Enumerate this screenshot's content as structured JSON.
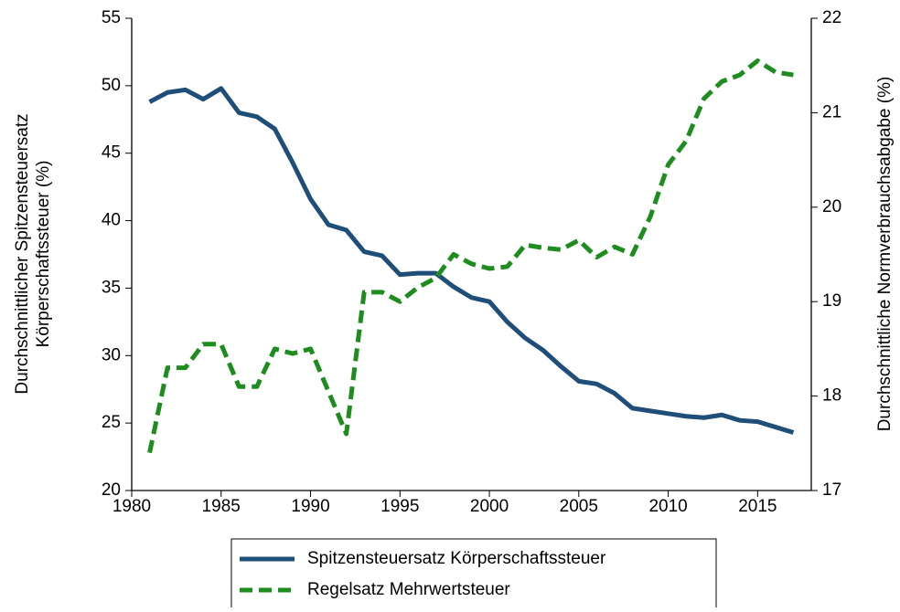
{
  "chart_data": {
    "type": "line",
    "x": [
      1981,
      1982,
      1983,
      1984,
      1985,
      1986,
      1987,
      1988,
      1989,
      1990,
      1991,
      1992,
      1993,
      1994,
      1995,
      1996,
      1997,
      1998,
      1999,
      2000,
      2001,
      2002,
      2003,
      2004,
      2005,
      2006,
      2007,
      2008,
      2009,
      2010,
      2011,
      2012,
      2013,
      2014,
      2015,
      2016,
      2017
    ],
    "series": [
      {
        "name": "Spitzensteuersatz Körperschaftssteuer",
        "color": "#1f4e79",
        "dash": "solid",
        "values": [
          48.8,
          49.5,
          49.7,
          49.0,
          49.8,
          48.0,
          47.7,
          46.8,
          44.3,
          41.6,
          39.7,
          39.3,
          37.7,
          37.4,
          36.0,
          36.1,
          36.1,
          35.1,
          34.3,
          34.0,
          32.5,
          31.3,
          30.4,
          29.2,
          28.1,
          27.9,
          27.2,
          26.1,
          25.9,
          25.7,
          25.5,
          25.4,
          25.6,
          25.2,
          25.1,
          24.7,
          24.3
        ]
      },
      {
        "name": "Regelsatz Mehrwertsteuer",
        "color": "#1e8c1e",
        "dash": "dashed",
        "axis": "y2",
        "values": [
          17.4,
          18.3,
          18.3,
          18.55,
          18.55,
          18.1,
          18.1,
          18.5,
          18.45,
          18.5,
          18.05,
          17.6,
          19.1,
          19.1,
          19.0,
          19.15,
          19.25,
          19.5,
          19.4,
          19.35,
          19.37,
          19.6,
          19.57,
          19.55,
          19.65,
          19.47,
          19.58,
          19.5,
          19.9,
          20.45,
          20.7,
          21.15,
          21.33,
          21.4,
          21.55,
          21.43,
          21.4
        ]
      }
    ],
    "y_label": [
      "Durchschnittlicher Spitzensteuersatz",
      "Körperschaftssteuer (%)"
    ],
    "y2_label": "Durchschnittliche Normverbrauchsabgabe (%)",
    "xlim": [
      1980,
      2018
    ],
    "xticks": [
      1980,
      1985,
      1990,
      1995,
      2000,
      2005,
      2010,
      2015
    ],
    "ylim": [
      20,
      55
    ],
    "yticks": [
      20,
      25,
      30,
      35,
      40,
      45,
      50,
      55
    ],
    "y2lim": [
      17,
      22
    ],
    "y2ticks": [
      17,
      18,
      19,
      20,
      21,
      22
    ],
    "legend": "bottom"
  }
}
